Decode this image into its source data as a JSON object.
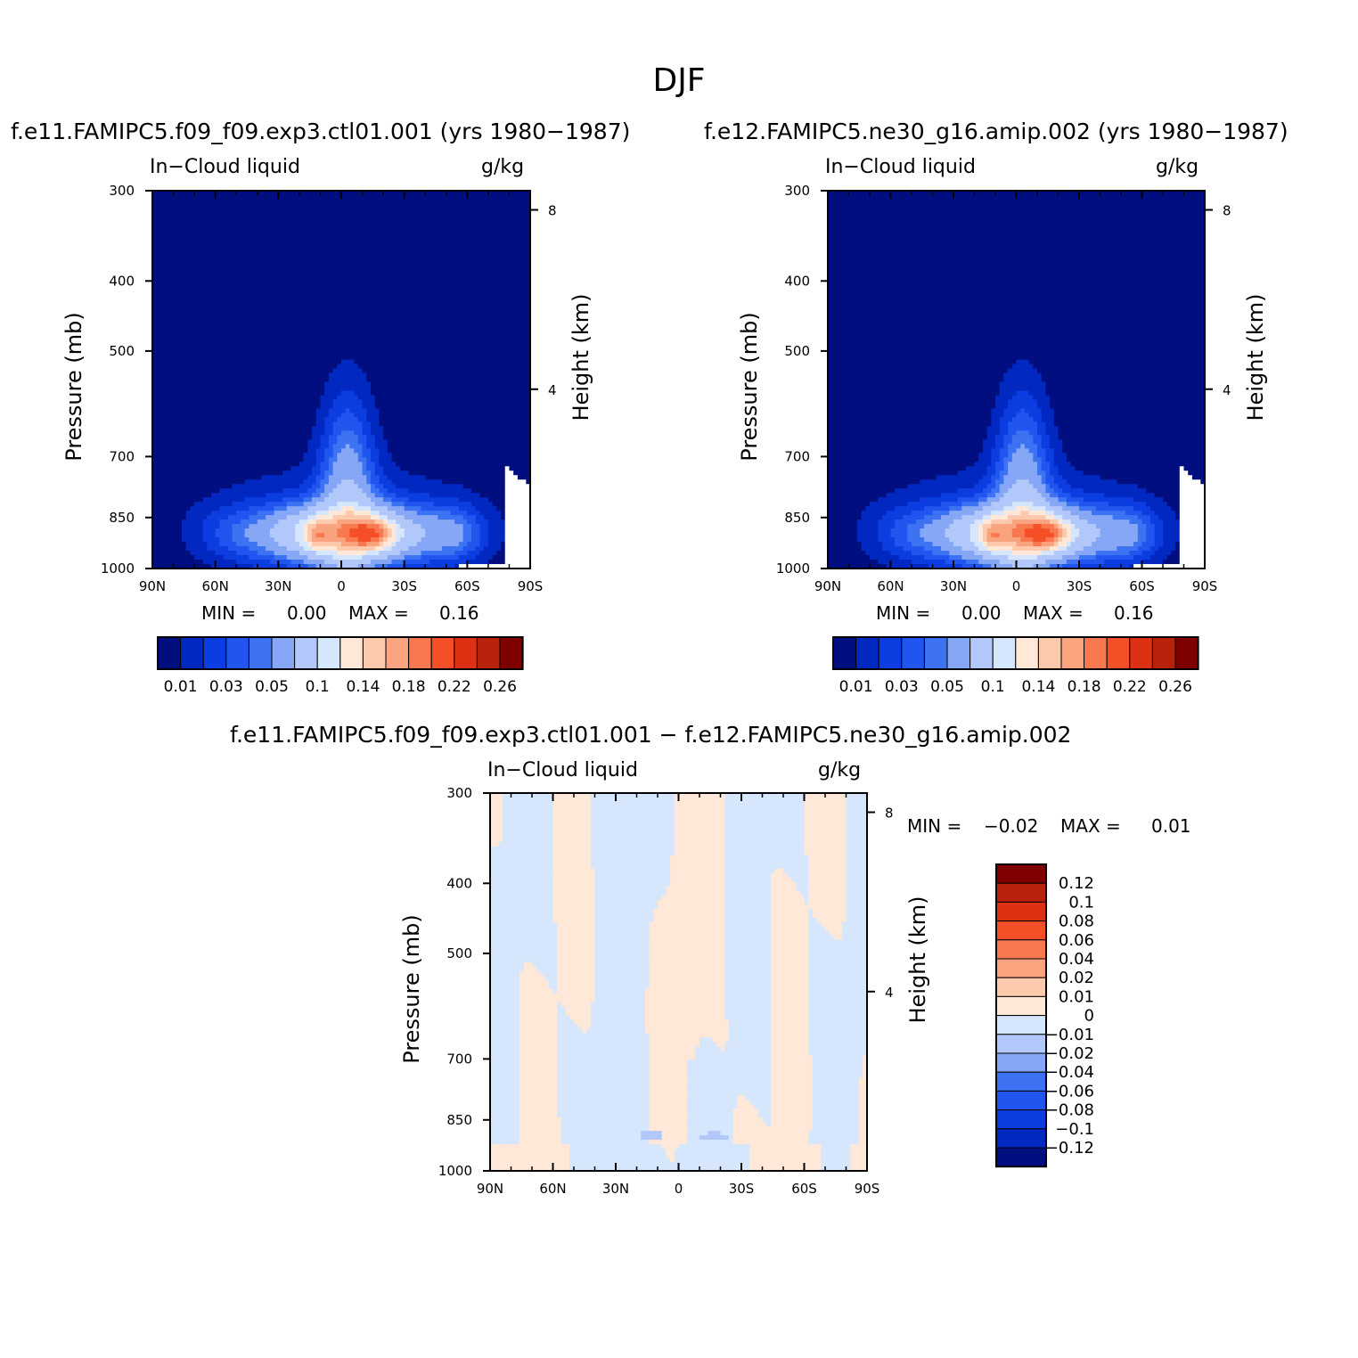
{
  "figure": {
    "title": "DJF"
  },
  "chart_data": [
    {
      "type": "heatmap",
      "title": "f.e11.FAMIPC5.f09_f09.exp3.ctl01.001 (yrs 1980−1987)",
      "left_string": "In−Cloud liquid",
      "right_string": "g/kg",
      "ylabel": "Pressure (mb)",
      "ylabel_right": "Height (km)",
      "x_ticks": [
        "90N",
        "60N",
        "30N",
        "0",
        "30S",
        "60S",
        "90S"
      ],
      "y_ticks": [
        "300",
        "400",
        "500",
        "700",
        "850",
        "1000"
      ],
      "y_ticks_right": [
        "8",
        "4"
      ],
      "ylim": [
        1000,
        300
      ],
      "log_y": true,
      "stats": {
        "min_label": "MIN =",
        "min": "0.00",
        "max_label": "MAX =",
        "max": "0.16"
      },
      "levels": [
        0.01,
        0.02,
        0.03,
        0.04,
        0.05,
        0.07,
        0.1,
        0.12,
        0.14,
        0.16,
        0.18,
        0.2,
        0.22,
        0.24,
        0.26
      ],
      "colorbar_labels": [
        "0.01",
        "0.03",
        "0.05",
        "0.1",
        "0.14",
        "0.18",
        "0.22",
        "0.26"
      ],
      "colors": [
        "#000e7f",
        "#0128c0",
        "#0b3de0",
        "#2055f0",
        "#3d73f2",
        "#86a7f5",
        "#b2c8fa",
        "#d6e6fd",
        "#ffe8d8",
        "#fcc9ad",
        "#f9a37f",
        "#f8794f",
        "#f44f26",
        "#de3012",
        "#b8220a",
        "#7e0000"
      ],
      "peak_lat": "15S",
      "peak_pressure": 900
    },
    {
      "type": "heatmap",
      "title": "f.e12.FAMIPC5.ne30_g16.amip.002 (yrs 1980−1987)",
      "left_string": "In−Cloud liquid",
      "right_string": "g/kg",
      "ylabel": "Pressure (mb)",
      "ylabel_right": "Height (km)",
      "x_ticks": [
        "90N",
        "60N",
        "30N",
        "0",
        "30S",
        "60S",
        "90S"
      ],
      "y_ticks": [
        "300",
        "400",
        "500",
        "700",
        "850",
        "1000"
      ],
      "y_ticks_right": [
        "8",
        "4"
      ],
      "ylim": [
        1000,
        300
      ],
      "log_y": true,
      "stats": {
        "min_label": "MIN =",
        "min": "0.00",
        "max_label": "MAX =",
        "max": "0.16"
      },
      "colorbar_labels": [
        "0.01",
        "0.03",
        "0.05",
        "0.1",
        "0.14",
        "0.18",
        "0.22",
        "0.26"
      ]
    },
    {
      "type": "heatmap",
      "title": "f.e11.FAMIPC5.f09_f09.exp3.ctl01.001 − f.e12.FAMIPC5.ne30_g16.amip.002",
      "left_string": "In−Cloud liquid",
      "right_string": "g/kg",
      "ylabel": "Pressure (mb)",
      "ylabel_right": "Height (km)",
      "x_ticks": [
        "90N",
        "60N",
        "30N",
        "0",
        "30S",
        "60S",
        "90S"
      ],
      "y_ticks": [
        "300",
        "400",
        "500",
        "700",
        "850",
        "1000"
      ],
      "y_ticks_right": [
        "8",
        "4"
      ],
      "ylim": [
        1000,
        300
      ],
      "log_y": true,
      "stats": {
        "min_label": "MIN =",
        "min": "−0.02",
        "max_label": "MAX =",
        "max": "0.01"
      },
      "levels": [
        -0.12,
        -0.1,
        -0.08,
        -0.06,
        -0.04,
        -0.02,
        -0.01,
        0,
        0.01,
        0.02,
        0.04,
        0.06,
        0.08,
        0.1,
        0.12
      ],
      "colorbar_labels": [
        "0.12",
        "0.1",
        "0.08",
        "0.06",
        "0.04",
        "0.02",
        "0.01",
        "0",
        "−0.01",
        "−0.02",
        "−0.04",
        "−0.06",
        "−0.08",
        "−0.1",
        "−0.12"
      ],
      "colors": [
        "#7e0000",
        "#b8220a",
        "#de3012",
        "#f44f26",
        "#f8794f",
        "#f9a37f",
        "#fcc9ad",
        "#ffe8d8",
        "#d6e6fd",
        "#b2c8fa",
        "#86a7f5",
        "#3d73f2",
        "#2055f0",
        "#0b3de0",
        "#0128c0",
        "#000e7f"
      ]
    }
  ]
}
